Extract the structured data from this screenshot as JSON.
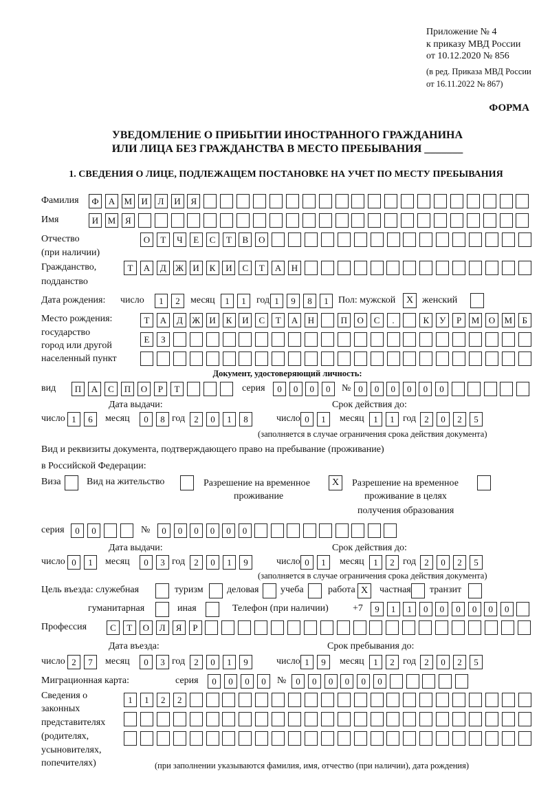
{
  "header": {
    "appendix": "Приложение № 4",
    "order": "к приказу МВД России",
    "order_date": "от 10.12.2020 № 856",
    "edition": "(в ред. Приказа МВД России",
    "edition_date": "от 16.11.2022 № 867)",
    "form_label": "ФОРМА",
    "title_line1": "УВЕДОМЛЕНИЕ О ПРИБЫТИИ ИНОСТРАННОГО ГРАЖДАНИНА",
    "title_line2": "ИЛИ ЛИЦА БЕЗ ГРАЖДАНСТВА В МЕСТО ПРЕБЫВАНИЯ _______"
  },
  "section1": {
    "heading": "1. СВЕДЕНИЯ О ЛИЦЕ, ПОДЛЕЖАЩЕМ ПОСТАНОВКЕ НА УЧЕТ ПО МЕСТУ ПРЕБЫВАНИЯ",
    "labels": {
      "surname": "Фамилия",
      "name": "Имя",
      "patronymic": "Отчество",
      "patronymic_note": "(при наличии)",
      "citizenship": "Гражданство,",
      "citizenship2": "подданство",
      "birth_date": "Дата рождения:",
      "day": "число",
      "month": "месяц",
      "year": "год",
      "sex": "Пол: мужской",
      "female": "женский",
      "birthplace": "Место рождения:",
      "birthplace2": "государство",
      "birthplace3": "город или другой",
      "birthplace4": "населенный пункт",
      "id_doc": "Документ, удостоверяющий личность:",
      "kind": "вид",
      "series": "серия",
      "number": "№",
      "issue_date": "Дата выдачи:",
      "valid_until": "Срок действия до:",
      "validity_note": "(заполняется в случае ограничения срока действия документа)",
      "stay_doc1": "Вид и реквизиты документа, подтверждающего право на пребывание (проживание)",
      "stay_doc2": "в Российской Федерации:",
      "visa": "Виза",
      "residence": "Вид на жительство",
      "temp_permit1": "Разрешение на временное",
      "temp_permit2": "проживание",
      "edu_permit1": "Разрешение на временное",
      "edu_permit2": "проживание в целях",
      "edu_permit3": "получения образования",
      "purpose": "Цель въезда: служебная",
      "tourism": "туризм",
      "business": "деловая",
      "study": "учеба",
      "work": "работа",
      "private": "частная",
      "transit": "транзит",
      "humanitarian": "гуманитарная",
      "other": "иная",
      "phone": "Телефон (при наличии)",
      "phone_prefix": "+7",
      "profession": "Профессия",
      "entry_date": "Дата въезда:",
      "stay_until": "Срок пребывания до:",
      "migration_card": "Миграционная карта:",
      "reps1": "Сведения о",
      "reps2": "законных",
      "reps3": "представителях",
      "reps4": "(родителях,",
      "reps5": "усыновителях,",
      "reps6": "попечителях)",
      "reps_note": "(при заполнении указываются фамилия, имя, отчество (при наличии), дата рождения)"
    },
    "fields": {
      "surname": [
        "Ф",
        "А",
        "М",
        "И",
        "Л",
        "И",
        "Я"
      ],
      "name": [
        "И",
        "М",
        "Я"
      ],
      "patronymic": [
        "О",
        "Т",
        "Ч",
        "Е",
        "С",
        "Т",
        "В",
        "О"
      ],
      "citizenship": [
        "Т",
        "А",
        "Д",
        "Ж",
        "И",
        "К",
        "И",
        "С",
        "Т",
        "А",
        "Н"
      ],
      "birth_day": [
        "1",
        "2"
      ],
      "birth_month": [
        "1",
        "1"
      ],
      "birth_year": [
        "1",
        "9",
        "8",
        "1"
      ],
      "birthplace_1": [
        "Т",
        "А",
        "Д",
        "Ж",
        "И",
        "К",
        "И",
        "С",
        "Т",
        "А",
        "Н",
        "",
        "П",
        "О",
        "С",
        ".",
        "",
        "К",
        "У",
        "Р",
        "М",
        "О",
        "М",
        "Б"
      ],
      "birthplace_2": [
        "Е",
        "З"
      ],
      "birthplace_3": [],
      "id_kind": [
        "П",
        "А",
        "С",
        "П",
        "О",
        "Р",
        "Т"
      ],
      "id_series": [
        "0",
        "0",
        "0",
        "0"
      ],
      "id_number": [
        "0",
        "0",
        "0",
        "0",
        "0",
        "0"
      ],
      "id_issue_day": [
        "1",
        "6"
      ],
      "id_issue_month": [
        "0",
        "8"
      ],
      "id_issue_year": [
        "2",
        "0",
        "1",
        "8"
      ],
      "id_valid_day": [
        "0",
        "1"
      ],
      "id_valid_month": [
        "1",
        "1"
      ],
      "id_valid_year": [
        "2",
        "0",
        "2",
        "5"
      ],
      "stay_series": [
        "0",
        "0"
      ],
      "stay_number": [
        "0",
        "0",
        "0",
        "0",
        "0",
        "0"
      ],
      "stay_issue_day": [
        "0",
        "1"
      ],
      "stay_issue_month": [
        "0",
        "3"
      ],
      "stay_issue_year": [
        "2",
        "0",
        "1",
        "9"
      ],
      "stay_valid_day": [
        "0",
        "1"
      ],
      "stay_valid_month": [
        "1",
        "2"
      ],
      "stay_valid_year": [
        "2",
        "0",
        "2",
        "5"
      ],
      "phone": [
        "9",
        "1",
        "1",
        "0",
        "0",
        "0",
        "0",
        "0",
        "0"
      ],
      "profession": [
        "С",
        "Т",
        "О",
        "Л",
        "Я",
        "Р"
      ],
      "entry_day": [
        "2",
        "7"
      ],
      "entry_month": [
        "0",
        "3"
      ],
      "entry_year": [
        "2",
        "0",
        "1",
        "9"
      ],
      "stay_until_day": [
        "1",
        "9"
      ],
      "stay_until_month": [
        "1",
        "2"
      ],
      "stay_until_year": [
        "2",
        "0",
        "2",
        "5"
      ],
      "mig_series": [
        "0",
        "0",
        "0",
        "0"
      ],
      "mig_number": [
        "0",
        "0",
        "0",
        "0",
        "0",
        "0"
      ],
      "reps_1": [
        "1",
        "1",
        "2",
        "2"
      ],
      "reps_2": [],
      "reps_3": []
    },
    "checkboxes": {
      "mark": "X",
      "sex_male": true,
      "sex_female": false,
      "visa": false,
      "residence": false,
      "temp_permit": true,
      "edu_permit": false,
      "purpose_official": false,
      "purpose_tourism": false,
      "purpose_business": false,
      "purpose_study": false,
      "purpose_work": true,
      "purpose_private": false,
      "purpose_transit": false,
      "purpose_humanitarian": false,
      "purpose_other": false
    }
  }
}
